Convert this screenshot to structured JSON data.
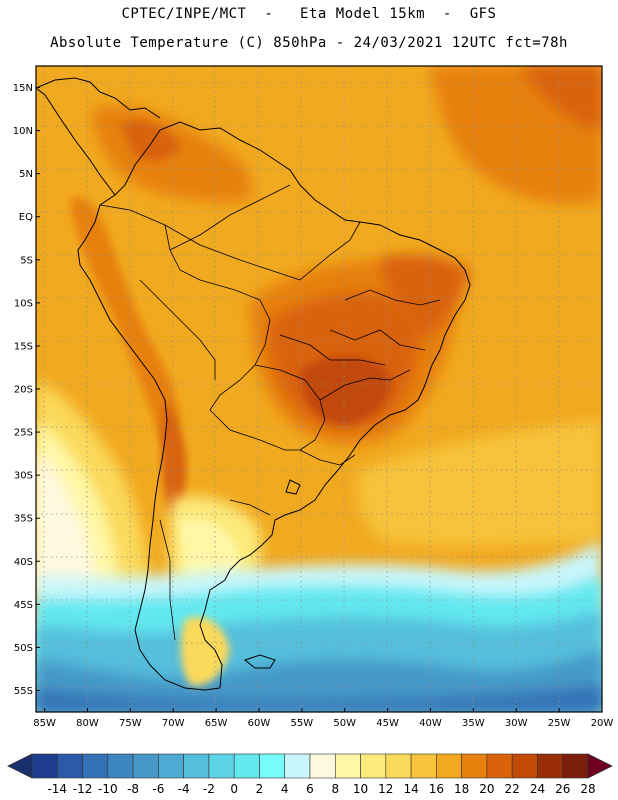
{
  "header": {
    "line1": "CPTEC/INPE/MCT  -   Eta Model 15km  -  GFS",
    "line2": "Absolute Temperature (C) 850hPa - 24/03/2021 12UTC fct=78h"
  },
  "map": {
    "lat_ticks": [
      "15N",
      "10N",
      "5N",
      "EQ",
      "5S",
      "10S",
      "15S",
      "20S",
      "25S",
      "30S",
      "35S",
      "40S",
      "45S",
      "50S",
      "55S"
    ],
    "lon_ticks": [
      "85W",
      "80W",
      "75W",
      "70W",
      "65W",
      "60W",
      "55W",
      "50W",
      "45W",
      "40W",
      "35W",
      "30W",
      "25W",
      "20W"
    ],
    "lat_range": [
      17.5,
      -57.5
    ],
    "lon_range": [
      -86,
      -20
    ]
  },
  "colorbar": {
    "labels": [
      "-14",
      "-12",
      "-10",
      "-8",
      "-6",
      "-4",
      "-2",
      "0",
      "2",
      "4",
      "6",
      "8",
      "10",
      "12",
      "14",
      "16",
      "18",
      "20",
      "22",
      "24",
      "26",
      "28"
    ],
    "colors": [
      "#1f3d8e",
      "#2a5aa8",
      "#3471b6",
      "#3d86c2",
      "#4598c8",
      "#4eaad2",
      "#55bfdc",
      "#5dd3e6",
      "#62e8ef",
      "#77fbfb",
      "#c9f6fb",
      "#fff8e0",
      "#fff7a6",
      "#fdea7c",
      "#fbd95a",
      "#f6c33a",
      "#f1a91f",
      "#e7800c",
      "#d9620b",
      "#c24a07",
      "#9a2e06",
      "#7a1e0b"
    ],
    "end_low_color": "#1a2f6e",
    "end_high_color": "#6e0020"
  }
}
